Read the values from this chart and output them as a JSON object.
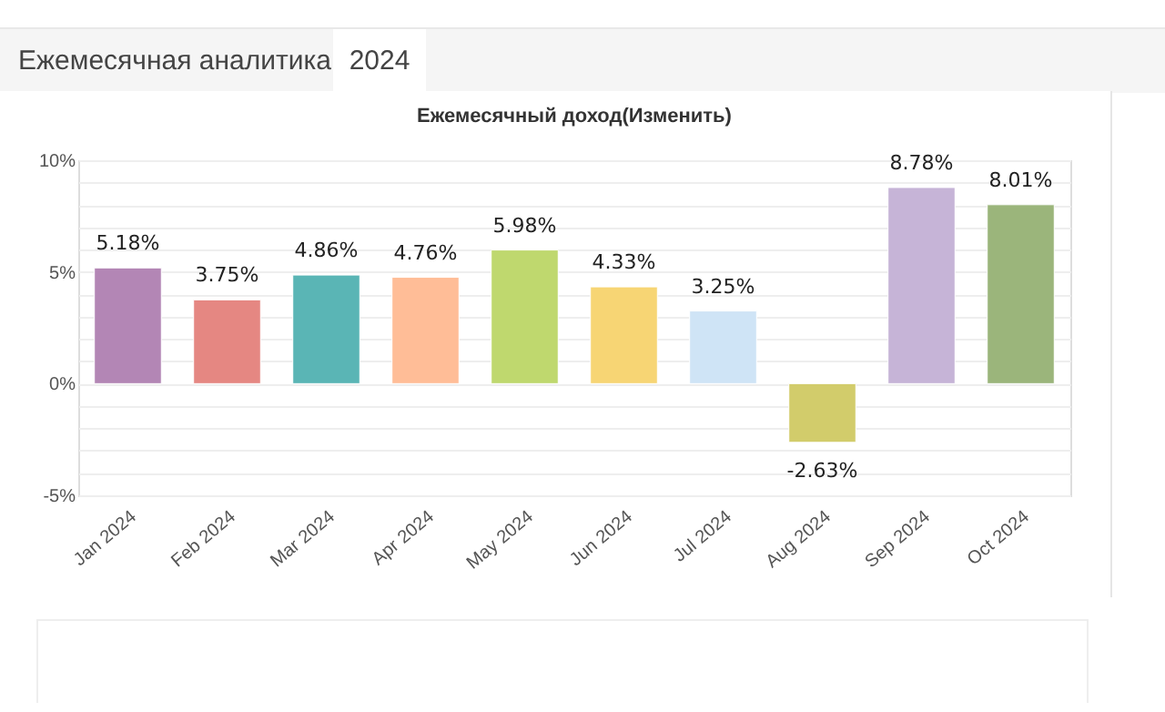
{
  "chart_data": {
    "type": "bar",
    "title": "Ежемесячный доход(Изменить)",
    "annotations": [
      "Ежемесячная аналитика",
      "2024"
    ],
    "categories": [
      "Jan 2024",
      "Feb 2024",
      "Mar 2024",
      "Apr 2024",
      "May 2024",
      "Jun 2024",
      "Jul 2024",
      "Aug 2024",
      "Sep 2024",
      "Oct 2024"
    ],
    "values": [
      5.18,
      3.75,
      4.86,
      4.76,
      5.98,
      4.33,
      3.25,
      -2.63,
      8.78,
      8.01
    ],
    "value_labels": [
      "5.18%",
      "3.75%",
      "4.86%",
      "4.76%",
      "5.98%",
      "4.33%",
      "3.25%",
      "-2.63%",
      "8.78%",
      "8.01%"
    ],
    "colors": [
      "#b386b5",
      "#e58782",
      "#5ab5b5",
      "#ffbd97",
      "#bfd86e",
      "#f7d574",
      "#cfe4f6",
      "#d2cc6b",
      "#c6b4d7",
      "#9bb57b"
    ],
    "ylim": [
      -5,
      10
    ],
    "yticks": [
      {
        "value": -5,
        "label": "-5%"
      },
      {
        "value": -4,
        "label": null
      },
      {
        "value": -3,
        "label": null
      },
      {
        "value": -2,
        "label": null
      },
      {
        "value": -1,
        "label": null
      },
      {
        "value": 0,
        "label": "0%"
      },
      {
        "value": 1,
        "label": null
      },
      {
        "value": 2,
        "label": null
      },
      {
        "value": 3,
        "label": null
      },
      {
        "value": 4,
        "label": null
      },
      {
        "value": 5,
        "label": "5%"
      },
      {
        "value": 6,
        "label": null
      },
      {
        "value": 7,
        "label": null
      },
      {
        "value": 8,
        "label": null
      },
      {
        "value": 9,
        "label": null
      },
      {
        "value": 10,
        "label": "10%"
      }
    ],
    "grid": "y"
  }
}
